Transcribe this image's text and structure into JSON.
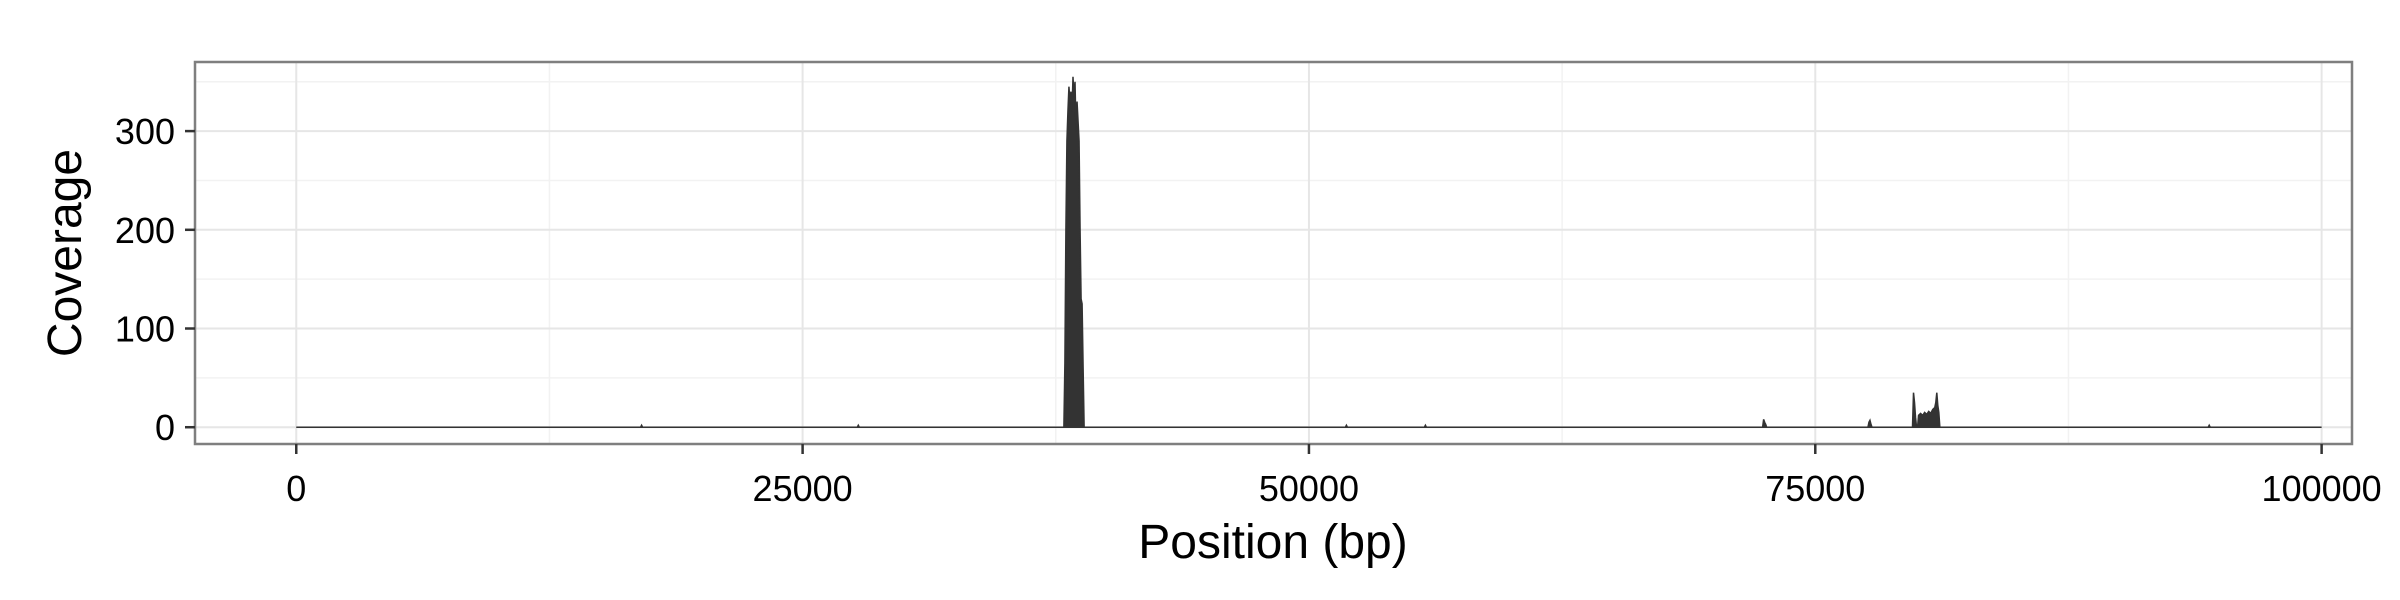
{
  "chart_data": {
    "type": "area",
    "title": "",
    "xlabel": "Position (bp)",
    "ylabel": "Coverage",
    "xlim": [
      -5000,
      101500
    ],
    "ylim": [
      -17,
      370
    ],
    "xticks": [
      0,
      25000,
      50000,
      75000,
      100000
    ],
    "xtick_labels": [
      "0",
      "25000",
      "50000",
      "75000",
      "100000"
    ],
    "yticks": [
      0,
      100,
      200,
      300
    ],
    "ytick_labels": [
      "0",
      "100",
      "200",
      "300"
    ],
    "grid": true,
    "legend": "none",
    "theme": "black-and-white",
    "colors": {
      "fill": "#333333",
      "grid_major": "#e6e6e6",
      "grid_minor": "#f2f2f2",
      "border": "#7f7f7f",
      "tick": "#333333"
    },
    "series": [
      {
        "x": [
          0,
          17000,
          17050,
          17100,
          27700,
          27750,
          27800,
          37900,
          37950,
          38000,
          38050,
          38100,
          38150,
          38200,
          38250,
          38300,
          38350,
          38400,
          38450,
          38500,
          38550,
          38600,
          38650,
          38700,
          38750,
          38800,
          38850,
          38900,
          38950,
          51800,
          51850,
          51900,
          55700,
          55750,
          55800,
          72400,
          72450,
          72500,
          72550,
          72600,
          77600,
          77650,
          77700,
          77750,
          77800,
          79800,
          79850,
          79900,
          79950,
          80000,
          80050,
          80100,
          80200,
          80300,
          80400,
          80500,
          80600,
          80700,
          80800,
          80900,
          80950,
          81000,
          81050,
          81100,
          81150,
          94400,
          94450,
          94500,
          100000
        ],
        "y": [
          0,
          0,
          2,
          0,
          0,
          2,
          0,
          0,
          65,
          200,
          290,
          320,
          345,
          330,
          340,
          320,
          355,
          335,
          350,
          300,
          330,
          310,
          290,
          200,
          130,
          125,
          60,
          0,
          0,
          0,
          2,
          0,
          0,
          2,
          0,
          0,
          8,
          5,
          3,
          0,
          0,
          5,
          7,
          3,
          0,
          0,
          35,
          25,
          10,
          0,
          0,
          12,
          14,
          12,
          15,
          13,
          16,
          14,
          18,
          20,
          25,
          35,
          22,
          15,
          0,
          0,
          2,
          0,
          0
        ]
      }
    ]
  }
}
